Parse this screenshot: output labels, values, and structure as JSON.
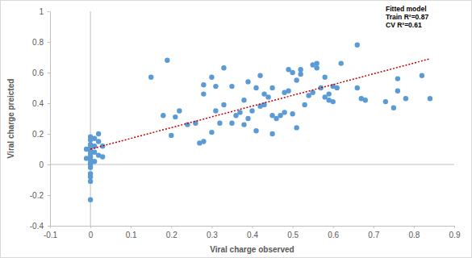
{
  "chart_data": {
    "type": "scatter",
    "x_label": "Viral charge observed",
    "y_label": "Viral charge preicted",
    "annotations": [
      "Fitted model",
      "Train R²=0.87",
      "CV R²=0.61"
    ],
    "xlim": [
      -0.1,
      0.9
    ],
    "xticks": [
      -0.1,
      0,
      0.1,
      0.2,
      0.3,
      0.4,
      0.5,
      0.6,
      0.7,
      0.8,
      0.9
    ],
    "ylim": [
      -0.4,
      1
    ],
    "yticks": [
      -0.4,
      -0.2,
      0,
      0.2,
      0.4,
      0.6,
      0.8,
      1
    ],
    "grid": false,
    "series": [
      {
        "type": "scatter",
        "color": "#5b9bd5",
        "marker": "circle",
        "x": [
          0.0,
          0.0,
          0.0,
          0.0,
          0.0,
          0.0,
          0.0,
          0.0,
          0.0,
          0.0,
          0.0,
          0.0,
          0.0,
          0.0,
          0.01,
          0.01,
          0.01,
          0.02,
          0.02,
          0.02,
          0.03,
          0.03,
          -0.01,
          -0.01,
          0.0,
          0.01,
          0.15,
          0.18,
          0.19,
          0.2,
          0.21,
          0.22,
          0.24,
          0.26,
          0.27,
          0.28,
          0.28,
          0.28,
          0.3,
          0.3,
          0.31,
          0.31,
          0.32,
          0.33,
          0.33,
          0.35,
          0.35,
          0.36,
          0.37,
          0.38,
          0.38,
          0.39,
          0.39,
          0.4,
          0.41,
          0.41,
          0.42,
          0.42,
          0.43,
          0.43,
          0.44,
          0.45,
          0.45,
          0.45,
          0.46,
          0.47,
          0.48,
          0.48,
          0.49,
          0.49,
          0.5,
          0.5,
          0.51,
          0.51,
          0.52,
          0.52,
          0.53,
          0.54,
          0.55,
          0.55,
          0.56,
          0.56,
          0.57,
          0.58,
          0.58,
          0.59,
          0.59,
          0.6,
          0.6,
          0.61,
          0.62,
          0.66,
          0.66,
          0.67,
          0.68,
          0.73,
          0.75,
          0.76,
          0.78,
          0.82,
          0.84,
          0.76
        ],
        "values": [
          0.18,
          0.16,
          0.13,
          0.11,
          0.09,
          0.07,
          0.05,
          0.03,
          0.01,
          0.0,
          -0.02,
          -0.06,
          -0.11,
          -0.23,
          0.12,
          0.08,
          0.02,
          0.2,
          0.15,
          0.06,
          0.05,
          0.12,
          0.04,
          0.1,
          -0.08,
          0.17,
          0.57,
          0.32,
          0.68,
          0.19,
          0.31,
          0.35,
          0.26,
          0.27,
          0.14,
          0.15,
          0.52,
          0.46,
          0.21,
          0.57,
          0.35,
          0.51,
          0.27,
          0.39,
          0.63,
          0.27,
          0.51,
          0.32,
          0.34,
          0.42,
          0.26,
          0.3,
          0.54,
          0.35,
          0.5,
          0.22,
          0.38,
          0.58,
          0.46,
          0.39,
          0.44,
          0.32,
          0.5,
          0.2,
          0.3,
          0.32,
          0.47,
          0.34,
          0.48,
          0.62,
          0.33,
          0.6,
          0.55,
          0.24,
          0.62,
          0.59,
          0.39,
          0.45,
          0.65,
          0.47,
          0.66,
          0.63,
          0.5,
          0.57,
          0.44,
          0.46,
          0.42,
          0.41,
          0.51,
          0.5,
          0.66,
          0.78,
          0.5,
          0.43,
          0.42,
          0.41,
          0.37,
          0.56,
          0.43,
          0.58,
          0.43,
          0.48
        ]
      },
      {
        "type": "line",
        "color": "#c00000",
        "line_style": "dotted",
        "x": [
          0.0,
          0.84
        ],
        "values": [
          0.1,
          0.69
        ]
      }
    ]
  }
}
